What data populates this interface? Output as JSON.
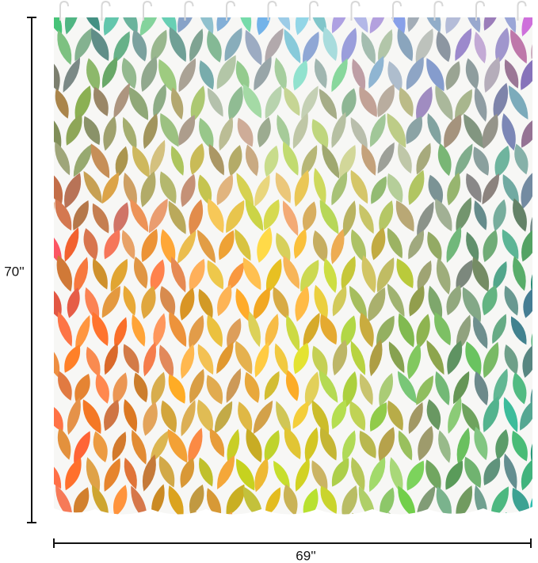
{
  "dimensions": {
    "height": "70''",
    "width": "69''"
  }
}
